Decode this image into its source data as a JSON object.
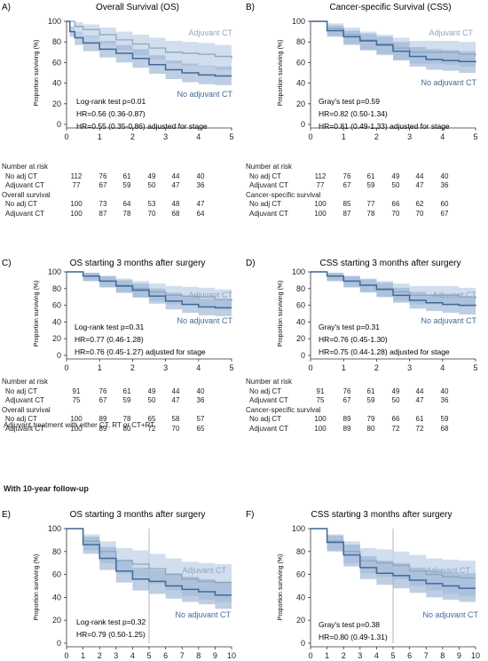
{
  "colors": {
    "adjuvant": "#8fa5be",
    "no_adjuvant": "#3f6a99",
    "band_light": "#c2d3e8",
    "band_dark": "#92add0",
    "axis": "#333333"
  },
  "panels": [
    {
      "letter": "A)",
      "title": "Overall Survival (OS)",
      "ylabel": "Proportion surviving (%)",
      "legend_adjuvant": "Adjuvant CT",
      "legend_no_adjuvant": "No adjuvant CT",
      "stats": [
        "Log-rank test p=0.01",
        "HR=0.56 (0.36-0.87)",
        "HR=0.55 (0.35-0.86) adjusted for stage"
      ]
    },
    {
      "letter": "B)",
      "title": "Cancer-specific Survival (CSS)",
      "ylabel": "Proportion surviving (%)",
      "legend_adjuvant": "Adjuvant CT",
      "legend_no_adjuvant": "No adjuvant CT",
      "stats": [
        "Gray's test p=0.59",
        "HR=0.82 (0.50-1.34)",
        "HR=0.81 (0.49-1.33) adjusted for stage"
      ]
    },
    {
      "letter": "C)",
      "title": "OS starting 3 months after surgery",
      "ylabel": "Proportion surviving (%)",
      "legend_adjuvant": "Adjuvant CT",
      "legend_no_adjuvant": "No adjuvant CT",
      "stats": [
        "Log-rank test p=0.31",
        "HR=0.77 (0.46-1.28)",
        "HR=0.76 (0.45-1.27) adjusted for stage"
      ]
    },
    {
      "letter": "D)",
      "title": "CSS starting 3 months after surgery",
      "ylabel": "Proportion surviving (%)",
      "legend_adjuvant": "Adjuvant CT",
      "legend_no_adjuvant": "No adjuvant CT",
      "stats": [
        "Gray's test p=0.31",
        "HR=0.76 (0.45-1.30)",
        "HR=0.75 (0.44-1.28) adjusted for stage"
      ]
    },
    {
      "letter": "E)",
      "title": "OS starting 3 months after surgery",
      "ylabel": "Proportion surviving (%)",
      "legend_adjuvant": "Adjuvant CT",
      "legend_no_adjuvant": "No adjuvant CT",
      "stats": [
        "Log-rank test p=0.32",
        "HR=0.79 (0.50-1.25)"
      ]
    },
    {
      "letter": "F)",
      "title": "CSS starting 3 months after surgery",
      "ylabel": "Proportion surviving (%)",
      "legend_adjuvant": "Adjuvant CT",
      "legend_no_adjuvant": "No adjuvant CT",
      "stats": [
        "Gray's test p=0.38",
        "HR=0.80 (0.49-1.31)"
      ]
    }
  ],
  "tables": [
    {
      "risk_header": "Number at risk",
      "risk_rows": [
        {
          "label": "No adj CT",
          "values": [
            "112",
            "76",
            "61",
            "49",
            "44",
            "40"
          ]
        },
        {
          "label": "Adjuvant CT",
          "values": [
            "77",
            "67",
            "59",
            "50",
            "47",
            "36"
          ]
        }
      ],
      "surv_header": "Overall survival",
      "surv_rows": [
        {
          "label": "No adj CT",
          "values": [
            "100",
            "73",
            "64",
            "53",
            "48",
            "47"
          ]
        },
        {
          "label": "Adjuvant CT",
          "values": [
            "100",
            "87",
            "78",
            "70",
            "68",
            "64"
          ]
        }
      ]
    },
    {
      "risk_header": "Number at risk",
      "risk_rows": [
        {
          "label": "No adj CT",
          "values": [
            "112",
            "76",
            "61",
            "49",
            "44",
            "40"
          ]
        },
        {
          "label": "Adjuvant CT",
          "values": [
            "77",
            "67",
            "59",
            "50",
            "47",
            "36"
          ]
        }
      ],
      "surv_header": "Cancer-specific survival",
      "surv_rows": [
        {
          "label": "No adj CT",
          "values": [
            "100",
            "85",
            "77",
            "66",
            "62",
            "60"
          ]
        },
        {
          "label": "Adjuvant CT",
          "values": [
            "100",
            "87",
            "78",
            "70",
            "70",
            "67"
          ]
        }
      ]
    },
    {
      "risk_header": "Number at risk",
      "risk_rows": [
        {
          "label": "No adj CT",
          "values": [
            "91",
            "76",
            "61",
            "49",
            "44",
            "40"
          ]
        },
        {
          "label": "Adjuvant CT",
          "values": [
            "75",
            "67",
            "59",
            "50",
            "47",
            "36"
          ]
        }
      ],
      "surv_header": "Overall survival",
      "surv_rows": [
        {
          "label": "No adj CT",
          "values": [
            "100",
            "89",
            "78",
            "65",
            "58",
            "57"
          ]
        },
        {
          "label": "Adjuvant CT",
          "values": [
            "100",
            "89",
            "80",
            "72",
            "70",
            "65"
          ]
        }
      ]
    },
    {
      "risk_header": "Number at risk",
      "risk_rows": [
        {
          "label": "No adj CT",
          "values": [
            "91",
            "76",
            "61",
            "49",
            "44",
            "40"
          ]
        },
        {
          "label": "Adjuvant CT",
          "values": [
            "75",
            "67",
            "59",
            "50",
            "47",
            "36"
          ]
        }
      ],
      "surv_header": "Cancer-specific survival",
      "surv_rows": [
        {
          "label": "No adj CT",
          "values": [
            "100",
            "89",
            "79",
            "66",
            "61",
            "59"
          ]
        },
        {
          "label": "Adjuvant CT",
          "values": [
            "100",
            "89",
            "80",
            "72",
            "72",
            "68"
          ]
        }
      ]
    }
  ],
  "footnote": "Adjuvant treatment with either CT, RT or CT+RT",
  "section_title": "With 10-year follow-up",
  "chart_data": [
    {
      "type": "line",
      "xlim": [
        0,
        5
      ],
      "ylim": [
        0,
        100
      ],
      "xticks": [
        "0",
        "1",
        "2",
        "3",
        "4",
        "5"
      ],
      "yticks": [
        "0",
        "20",
        "40",
        "60",
        "80",
        "100"
      ],
      "series": [
        {
          "name": "Adjuvant CT",
          "x": [
            0,
            0.25,
            0.5,
            1,
            1.5,
            2,
            2.5,
            3,
            3.5,
            4,
            4.5,
            5
          ],
          "y": [
            100,
            95,
            92,
            87,
            82,
            78,
            74,
            70,
            69,
            68,
            66,
            64
          ],
          "ci_low": [
            100,
            90,
            85,
            78,
            72,
            67,
            63,
            59,
            57,
            56,
            53,
            50
          ],
          "ci_high": [
            100,
            99,
            97,
            94,
            90,
            87,
            84,
            81,
            80,
            79,
            77,
            76
          ]
        },
        {
          "name": "No adjuvant CT",
          "x": [
            0,
            0.1,
            0.25,
            0.5,
            1,
            1.5,
            2,
            2.5,
            3,
            3.5,
            4,
            4.5,
            5
          ],
          "y": [
            100,
            90,
            84,
            79,
            73,
            69,
            64,
            58,
            53,
            50,
            48,
            47,
            47
          ],
          "ci_low": [
            100,
            85,
            77,
            71,
            65,
            60,
            55,
            49,
            44,
            41,
            39,
            38,
            37
          ],
          "ci_high": [
            100,
            95,
            90,
            86,
            81,
            77,
            73,
            67,
            62,
            59,
            57,
            56,
            56
          ]
        }
      ]
    },
    {
      "type": "line",
      "xlim": [
        0,
        5
      ],
      "ylim": [
        0,
        100
      ],
      "xticks": [
        "0",
        "1",
        "2",
        "3",
        "4",
        "5"
      ],
      "yticks": [
        "0",
        "20",
        "40",
        "60",
        "80",
        "100"
      ],
      "series": [
        {
          "name": "Adjuvant CT",
          "x": [
            0,
            0.5,
            1,
            1.5,
            2,
            2.5,
            3,
            3.5,
            4,
            4.5,
            5
          ],
          "y": [
            100,
            93,
            87,
            82,
            78,
            74,
            70,
            70,
            70,
            68,
            67
          ],
          "ci_low": [
            100,
            86,
            78,
            72,
            67,
            63,
            59,
            59,
            58,
            56,
            55
          ],
          "ci_high": [
            100,
            98,
            94,
            90,
            87,
            84,
            81,
            81,
            81,
            80,
            79
          ]
        },
        {
          "name": "No adjuvant CT",
          "x": [
            0,
            0.5,
            1,
            1.5,
            2,
            2.5,
            3,
            3.5,
            4,
            4.5,
            5
          ],
          "y": [
            100,
            91,
            85,
            81,
            77,
            71,
            66,
            63,
            62,
            61,
            60
          ],
          "ci_low": [
            100,
            85,
            77,
            72,
            68,
            62,
            56,
            53,
            52,
            50,
            49
          ],
          "ci_high": [
            100,
            96,
            91,
            88,
            85,
            80,
            75,
            73,
            72,
            71,
            70
          ]
        }
      ]
    },
    {
      "type": "line",
      "xlim": [
        0,
        5
      ],
      "ylim": [
        0,
        100
      ],
      "xticks": [
        "0",
        "1",
        "2",
        "3",
        "4",
        "5"
      ],
      "yticks": [
        "0",
        "20",
        "40",
        "60",
        "80",
        "100"
      ],
      "series": [
        {
          "name": "Adjuvant CT",
          "x": [
            0,
            0.5,
            1,
            1.5,
            2,
            2.5,
            3,
            3.5,
            4,
            4.5,
            5
          ],
          "y": [
            100,
            95,
            89,
            84,
            80,
            76,
            72,
            71,
            70,
            67,
            65
          ],
          "ci_low": [
            100,
            89,
            81,
            75,
            70,
            65,
            61,
            60,
            58,
            55,
            52
          ],
          "ci_high": [
            100,
            99,
            95,
            92,
            89,
            86,
            83,
            82,
            81,
            79,
            77
          ]
        },
        {
          "name": "No adjuvant CT",
          "x": [
            0,
            0.5,
            1,
            1.5,
            2,
            2.5,
            3,
            3.5,
            4,
            4.5,
            5
          ],
          "y": [
            100,
            95,
            89,
            83,
            78,
            71,
            65,
            61,
            58,
            57,
            57
          ],
          "ci_low": [
            100,
            89,
            82,
            75,
            69,
            62,
            55,
            51,
            48,
            47,
            46
          ],
          "ci_high": [
            100,
            99,
            95,
            90,
            86,
            80,
            75,
            71,
            68,
            67,
            67
          ]
        }
      ]
    },
    {
      "type": "line",
      "xlim": [
        0,
        5
      ],
      "ylim": [
        0,
        100
      ],
      "xticks": [
        "0",
        "1",
        "2",
        "3",
        "4",
        "5"
      ],
      "yticks": [
        "0",
        "20",
        "40",
        "60",
        "80",
        "100"
      ],
      "series": [
        {
          "name": "Adjuvant CT",
          "x": [
            0,
            0.5,
            1,
            1.5,
            2,
            2.5,
            3,
            3.5,
            4,
            4.5,
            5
          ],
          "y": [
            100,
            95,
            89,
            84,
            80,
            76,
            72,
            72,
            72,
            70,
            68
          ],
          "ci_low": [
            100,
            89,
            81,
            75,
            70,
            65,
            61,
            61,
            60,
            58,
            56
          ],
          "ci_high": [
            100,
            99,
            95,
            92,
            89,
            86,
            83,
            83,
            83,
            81,
            80
          ]
        },
        {
          "name": "No adjuvant CT",
          "x": [
            0,
            0.5,
            1,
            1.5,
            2,
            2.5,
            3,
            3.5,
            4,
            4.5,
            5
          ],
          "y": [
            100,
            95,
            89,
            84,
            79,
            72,
            66,
            63,
            61,
            60,
            59
          ],
          "ci_low": [
            100,
            89,
            82,
            76,
            70,
            63,
            56,
            53,
            51,
            49,
            48
          ],
          "ci_high": [
            100,
            99,
            95,
            91,
            87,
            81,
            76,
            73,
            71,
            70,
            70
          ]
        }
      ]
    },
    {
      "type": "line",
      "xlim": [
        0,
        10
      ],
      "ylim": [
        0,
        100
      ],
      "xticks": [
        "0",
        "1",
        "2",
        "3",
        "4",
        "5",
        "6",
        "7",
        "8",
        "9",
        "10"
      ],
      "yticks": [
        "0",
        "20",
        "40",
        "60",
        "80",
        "100"
      ],
      "series": [
        {
          "name": "Adjuvant CT",
          "x": [
            0,
            1,
            2,
            3,
            4,
            5,
            6,
            7,
            8,
            9,
            10
          ],
          "y": [
            100,
            89,
            80,
            72,
            69,
            65,
            60,
            56,
            54,
            53,
            53
          ],
          "ci_low": [
            100,
            81,
            70,
            61,
            57,
            52,
            46,
            41,
            38,
            36,
            35
          ],
          "ci_high": [
            100,
            95,
            89,
            83,
            81,
            78,
            74,
            71,
            70,
            69,
            69
          ]
        },
        {
          "name": "No adjuvant CT",
          "x": [
            0,
            1,
            2,
            3,
            4,
            5,
            6,
            7,
            8,
            9,
            10
          ],
          "y": [
            100,
            86,
            74,
            63,
            56,
            54,
            50,
            47,
            45,
            42,
            42
          ],
          "ci_low": [
            100,
            78,
            64,
            53,
            46,
            43,
            39,
            36,
            34,
            30,
            30
          ],
          "ci_high": [
            100,
            93,
            84,
            73,
            66,
            64,
            61,
            58,
            56,
            54,
            54
          ]
        }
      ]
    },
    {
      "type": "line",
      "xlim": [
        0,
        10
      ],
      "ylim": [
        0,
        100
      ],
      "xticks": [
        "0",
        "1",
        "2",
        "3",
        "4",
        "5",
        "6",
        "7",
        "8",
        "9",
        "10"
      ],
      "yticks": [
        "0",
        "20",
        "40",
        "60",
        "80",
        "100"
      ],
      "series": [
        {
          "name": "Adjuvant CT",
          "x": [
            0,
            1,
            2,
            3,
            4,
            5,
            6,
            7,
            8,
            9,
            10
          ],
          "y": [
            100,
            89,
            80,
            72,
            70,
            68,
            63,
            60,
            58,
            57,
            57
          ],
          "ci_low": [
            100,
            81,
            70,
            61,
            58,
            56,
            50,
            46,
            43,
            41,
            41
          ],
          "ci_high": [
            100,
            95,
            89,
            83,
            82,
            80,
            77,
            74,
            73,
            72,
            72
          ]
        },
        {
          "name": "No adjuvant CT",
          "x": [
            0,
            1,
            2,
            3,
            4,
            5,
            6,
            7,
            8,
            9,
            10
          ],
          "y": [
            100,
            88,
            77,
            66,
            61,
            59,
            55,
            52,
            50,
            48,
            48
          ],
          "ci_low": [
            100,
            80,
            67,
            56,
            51,
            48,
            44,
            40,
            38,
            36,
            36
          ],
          "ci_high": [
            100,
            94,
            86,
            76,
            72,
            70,
            66,
            64,
            62,
            61,
            61
          ]
        }
      ]
    }
  ]
}
